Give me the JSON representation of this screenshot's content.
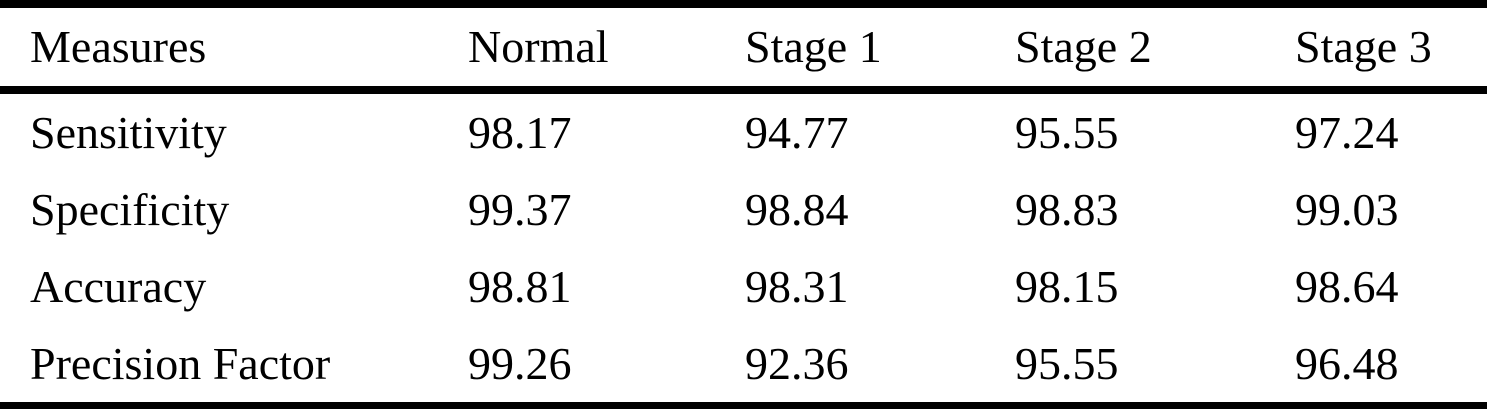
{
  "page": {
    "background_color": "#ffffff",
    "text_color": "#000000",
    "rule_color": "#000000"
  },
  "table": {
    "columns": [
      "Measures",
      "Normal",
      "Stage 1",
      "Stage 2",
      "Stage 3"
    ],
    "rows": [
      {
        "label": "Sensitivity",
        "values": [
          "98.17",
          "94.77",
          "95.55",
          "97.24"
        ]
      },
      {
        "label": "Specificity",
        "values": [
          "99.37",
          "98.84",
          "98.83",
          "99.03"
        ]
      },
      {
        "label": "Accuracy",
        "values": [
          "98.81",
          "98.31",
          "98.15",
          "98.64"
        ]
      },
      {
        "label": "Precision Factor",
        "values": [
          "99.26",
          "92.36",
          "95.55",
          "96.48"
        ]
      }
    ]
  }
}
